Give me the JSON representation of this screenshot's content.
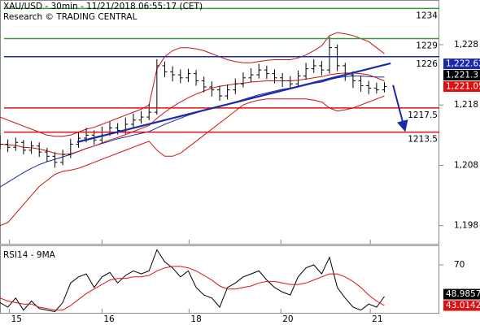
{
  "chart_data": [
    {
      "type": "ohlc",
      "title": "XAU/USD - 30min - 11/21/2018 06:55:17 (CET)",
      "subtitle": "Research © TRADING CENTRAL",
      "color": "#000000",
      "xlim": [
        0,
        56
      ],
      "xticks": [
        {
          "value": 1.2,
          "label": "15"
        },
        {
          "value": 13,
          "label": "16"
        },
        {
          "value": 24.1,
          "label": "18"
        },
        {
          "value": 35.8,
          "label": "20"
        },
        {
          "value": 47.2,
          "label": "21"
        }
      ],
      "ylim": [
        1195,
        1235.4
      ],
      "yticks": [
        {
          "value": 1228,
          "label": "1,228"
        },
        {
          "value": 1218,
          "label": "1,218"
        },
        {
          "value": 1208,
          "label": "1,208"
        },
        {
          "value": 1198,
          "label": "1,198"
        }
      ],
      "open": [
        1212,
        1211.5,
        1211,
        1211.8,
        1210.5,
        1211.2,
        1210.2,
        1209.5,
        1208.5,
        1209.8,
        1211.5,
        1212.5,
        1213,
        1212.2,
        1213.5,
        1214.2,
        1213.8,
        1214.8,
        1215.5,
        1216,
        1216.8,
        1224.5,
        1223.5,
        1223,
        1222.5,
        1223.2,
        1222,
        1221,
        1220.5,
        1219.5,
        1220.5,
        1221.5,
        1222.5,
        1223,
        1223.8,
        1223.2,
        1222.5,
        1222,
        1221.5,
        1222.8,
        1224,
        1224.5,
        1223.8,
        1227.5,
        1224.5,
        1223,
        1222,
        1221.2,
        1220.8,
        1220.5
      ],
      "high": [
        1213,
        1212.3,
        1212.6,
        1212.2,
        1212,
        1211.8,
        1210.9,
        1210.2,
        1210.6,
        1212.4,
        1213.6,
        1214.2,
        1213.8,
        1214.4,
        1215.2,
        1215,
        1215.9,
        1216.6,
        1217,
        1218.2,
        1225.6,
        1225.2,
        1224.4,
        1223.9,
        1224,
        1223.8,
        1222.7,
        1221.9,
        1221.2,
        1221.4,
        1222.4,
        1223.4,
        1224.1,
        1224.8,
        1224.5,
        1223.9,
        1223.3,
        1222.8,
        1223.7,
        1225,
        1225.6,
        1225.3,
        1229.3,
        1228,
        1225,
        1223.6,
        1222.8,
        1222,
        1221.7,
        1221.8
      ],
      "low": [
        1210.7,
        1210.2,
        1210.4,
        1209.8,
        1209.9,
        1209.4,
        1208.6,
        1207.6,
        1208,
        1209.2,
        1210.9,
        1211.8,
        1211.4,
        1211.7,
        1212.9,
        1213.1,
        1213.2,
        1214.2,
        1214.9,
        1215.5,
        1216.4,
        1222.6,
        1221.9,
        1221.6,
        1221.8,
        1221.2,
        1220.1,
        1219.4,
        1218.7,
        1218.9,
        1219.8,
        1220.9,
        1221.8,
        1222.4,
        1222.3,
        1221.6,
        1221,
        1220.6,
        1221,
        1222.2,
        1223.3,
        1222.9,
        1223.2,
        1223.6,
        1222,
        1220.8,
        1220.2,
        1219.8,
        1219.9,
        1220.1
      ],
      "close": [
        1211.5,
        1211,
        1211.8,
        1210.5,
        1211.2,
        1210.2,
        1209.5,
        1208.5,
        1209.8,
        1211.5,
        1212.5,
        1213,
        1212.2,
        1213.5,
        1214.2,
        1213.8,
        1214.8,
        1215.5,
        1216,
        1216.8,
        1224.5,
        1223.5,
        1223,
        1222.5,
        1223.2,
        1222,
        1221,
        1220.5,
        1219.5,
        1220.5,
        1221.5,
        1222.5,
        1223,
        1223.8,
        1223.2,
        1222.5,
        1222,
        1221.5,
        1222.8,
        1224,
        1224.5,
        1223.8,
        1227.5,
        1224.5,
        1223,
        1222,
        1221.2,
        1220.8,
        1220.5,
        1221.05
      ],
      "overlays": [
        {
          "color": "#1a2aa8",
          "values": [
            1204.4,
            1205.2,
            1206,
            1206.8,
            1207.5,
            1208.1,
            1208.6,
            1209,
            1209.4,
            1209.8,
            1210.3,
            1210.8,
            1211.2,
            1211.6,
            1212,
            1212.4,
            1212.7,
            1213,
            1213.3,
            1213.6,
            1214.2,
            1214.8,
            1215.3,
            1215.8,
            1216.3,
            1216.7,
            1217.1,
            1217.5,
            1217.8,
            1218.1,
            1218.5,
            1218.9,
            1219.3,
            1219.7,
            1220,
            1220.3,
            1220.6,
            1220.8,
            1221,
            1221.3,
            1221.6,
            1221.8,
            1222.2,
            1222.5,
            1222.7,
            1222.8,
            1222.8,
            1222.7,
            1222.65,
            1222.62
          ]
        },
        {
          "color": "#cc1111",
          "values": [
            1211.5,
            1211.4,
            1211.3,
            1211,
            1210.9,
            1210.7,
            1210.4,
            1210,
            1209.8,
            1209.9,
            1210.3,
            1210.8,
            1211.2,
            1211.7,
            1212.2,
            1212.6,
            1213.1,
            1213.6,
            1214.1,
            1214.6,
            1215.8,
            1216.8,
            1217.7,
            1218.5,
            1219.2,
            1219.8,
            1220.3,
            1220.8,
            1221.1,
            1221.3,
            1221.5,
            1221.6,
            1221.8,
            1221.9,
            1222,
            1222,
            1222,
            1222,
            1222.1,
            1222.3,
            1222.5,
            1222.7,
            1223,
            1223.2,
            1223.3,
            1223.3,
            1223.2,
            1223,
            1222.5,
            1222
          ]
        },
        {
          "color": "#cc1111",
          "values": [
            1216,
            1215.5,
            1215,
            1214.5,
            1214,
            1213.5,
            1213,
            1212.8,
            1212.8,
            1213,
            1213.5,
            1214,
            1214.3,
            1214.8,
            1215.3,
            1215.8,
            1216.3,
            1216.8,
            1217.3,
            1218,
            1224,
            1226,
            1227,
            1227.5,
            1227.5,
            1227.3,
            1227,
            1226.5,
            1226,
            1225.5,
            1225.2,
            1225,
            1225,
            1225.2,
            1225.4,
            1225.5,
            1225.5,
            1225.5,
            1225.8,
            1226.3,
            1227,
            1227.8,
            1229.5,
            1230,
            1229.8,
            1229.5,
            1229,
            1228.5,
            1227.5,
            1226.5
          ]
        },
        {
          "color": "#cc1111",
          "values": [
            1198,
            1198.5,
            1200,
            1201.5,
            1203,
            1204.5,
            1205.5,
            1206.5,
            1207,
            1207.2,
            1207.5,
            1208,
            1208.5,
            1209,
            1209.5,
            1210,
            1210.5,
            1211,
            1211.5,
            1212,
            1210.5,
            1209.5,
            1209.5,
            1210,
            1211,
            1212,
            1213,
            1214,
            1215,
            1216,
            1217,
            1218,
            1218.5,
            1218.8,
            1219,
            1219,
            1219,
            1219,
            1219,
            1219,
            1218.8,
            1218.5,
            1217.5,
            1217,
            1217.2,
            1217.5,
            1218,
            1218.5,
            1219,
            1219.5
          ]
        }
      ],
      "levels": [
        {
          "value": 1234,
          "color": "#3c963c"
        },
        {
          "value": 1229,
          "color": "#3c963c"
        },
        {
          "value": 1226,
          "color": "#1a2aa8"
        },
        {
          "value": 1217.5,
          "color": "#dd1111"
        },
        {
          "value": 1213.5,
          "color": "#dd1111"
        }
      ],
      "trendline": {
        "color": "#1a2aa8",
        "x": [
          9.85,
          49.8
        ],
        "y": [
          1211.85,
          1224.9
        ]
      },
      "arrow": {
        "color": "#1a2aa8",
        "x": [
          50.1,
          51.6
        ],
        "y": [
          1221.3,
          1213.9
        ]
      },
      "price_markers": [
        {
          "value": 1222.62,
          "label": "1,222.62",
          "color": "#1a2aa8"
        },
        {
          "value": 1221.3,
          "label": "1,221.3",
          "color": "#000000"
        },
        {
          "value": 1221.05,
          "label": "1,221.05",
          "color": "#dd1111"
        }
      ]
    },
    {
      "type": "line",
      "title": "RSI14 - 9MA",
      "xlim": [
        0,
        56
      ],
      "ylim": [
        38.2,
        82.4
      ],
      "yticks": [
        70
      ],
      "series": [
        {
          "color": "#000000",
          "values": [
            45,
            42,
            48,
            40,
            46,
            41,
            40,
            39,
            45,
            58,
            62,
            64,
            55,
            62,
            65,
            58,
            63,
            66,
            64,
            66,
            80,
            72,
            68,
            62,
            66,
            55,
            50,
            48,
            42,
            55,
            58,
            62,
            64,
            66,
            60,
            55,
            52,
            50,
            62,
            68,
            70,
            64,
            75,
            55,
            48,
            42,
            40,
            44,
            42,
            48.9857
          ]
        },
        {
          "color": "#dd1111",
          "values": [
            48,
            46,
            45,
            44,
            44,
            42,
            41,
            40,
            40,
            43,
            47,
            51,
            54,
            57,
            60,
            61,
            61,
            62,
            62,
            63,
            66,
            68,
            69,
            69,
            68,
            66,
            63,
            60,
            56,
            54,
            54,
            55,
            56,
            58,
            59,
            59,
            58,
            57,
            57,
            58,
            60,
            62,
            64,
            64,
            62,
            59,
            55,
            50,
            46,
            43.0142
          ]
        }
      ],
      "price_markers": [
        {
          "value": 48.9857,
          "color": "#000000"
        },
        {
          "value": 43.0142,
          "color": "#dd1111"
        }
      ]
    }
  ]
}
